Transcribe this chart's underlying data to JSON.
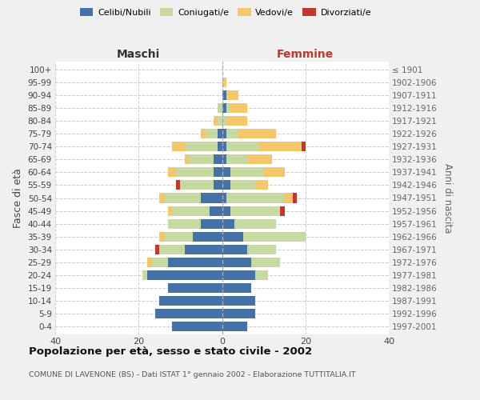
{
  "age_groups": [
    "0-4",
    "5-9",
    "10-14",
    "15-19",
    "20-24",
    "25-29",
    "30-34",
    "35-39",
    "40-44",
    "45-49",
    "50-54",
    "55-59",
    "60-64",
    "65-69",
    "70-74",
    "75-79",
    "80-84",
    "85-89",
    "90-94",
    "95-99",
    "100+"
  ],
  "birth_years": [
    "1997-2001",
    "1992-1996",
    "1987-1991",
    "1982-1986",
    "1977-1981",
    "1972-1976",
    "1967-1971",
    "1962-1966",
    "1957-1961",
    "1952-1956",
    "1947-1951",
    "1942-1946",
    "1937-1941",
    "1932-1936",
    "1927-1931",
    "1922-1926",
    "1917-1921",
    "1912-1916",
    "1907-1911",
    "1902-1906",
    "≤ 1901"
  ],
  "maschi_celibi": [
    12,
    16,
    15,
    13,
    18,
    13,
    9,
    7,
    5,
    3,
    5,
    2,
    2,
    2,
    1,
    1,
    0,
    0,
    0,
    0,
    0
  ],
  "maschi_coniugati": [
    0,
    0,
    0,
    0,
    1,
    4,
    6,
    7,
    8,
    9,
    9,
    8,
    9,
    6,
    8,
    3,
    1,
    1,
    0,
    0,
    0
  ],
  "maschi_vedovi": [
    0,
    0,
    0,
    0,
    0,
    1,
    0,
    1,
    0,
    1,
    1,
    0,
    2,
    1,
    3,
    1,
    1,
    0,
    0,
    0,
    0
  ],
  "maschi_divorziati": [
    0,
    0,
    0,
    0,
    0,
    0,
    1,
    0,
    0,
    0,
    0,
    1,
    0,
    0,
    0,
    0,
    0,
    0,
    0,
    0,
    0
  ],
  "femmine_nubili": [
    6,
    8,
    8,
    7,
    8,
    7,
    6,
    5,
    3,
    2,
    1,
    2,
    2,
    1,
    1,
    1,
    0,
    1,
    1,
    0,
    0
  ],
  "femmine_coniugate": [
    0,
    0,
    0,
    0,
    3,
    7,
    7,
    15,
    10,
    12,
    14,
    6,
    8,
    5,
    8,
    3,
    1,
    1,
    0,
    0,
    0
  ],
  "femmine_vedove": [
    0,
    0,
    0,
    0,
    0,
    0,
    0,
    0,
    0,
    0,
    2,
    3,
    5,
    6,
    10,
    9,
    5,
    4,
    3,
    1,
    0
  ],
  "femmine_divorziate": [
    0,
    0,
    0,
    0,
    0,
    0,
    0,
    0,
    0,
    1,
    1,
    0,
    0,
    0,
    1,
    0,
    0,
    0,
    0,
    0,
    0
  ],
  "color_celibi": "#4472a8",
  "color_coniugati": "#c5d9a0",
  "color_vedovi": "#f5c76a",
  "color_divorziati": "#c0392b",
  "xlim": 40,
  "title": "Popolazione per età, sesso e stato civile - 2002",
  "subtitle": "COMUNE DI LAVENONE (BS) - Dati ISTAT 1° gennaio 2002 - Elaborazione TUTTITALIA.IT",
  "ylabel": "Fasce di età",
  "ylabel_right": "Anni di nascita",
  "label_maschi": "Maschi",
  "label_femmine": "Femmine",
  "legend_labels": [
    "Celibi/Nubili",
    "Coniugati/e",
    "Vedovi/e",
    "Divorziati/e"
  ],
  "bg_color": "#f0f0f0",
  "plot_bg": "#ffffff",
  "grid_color": "#cccccc",
  "maschi_label_color": "#333333",
  "femmine_label_color": "#c0392b"
}
